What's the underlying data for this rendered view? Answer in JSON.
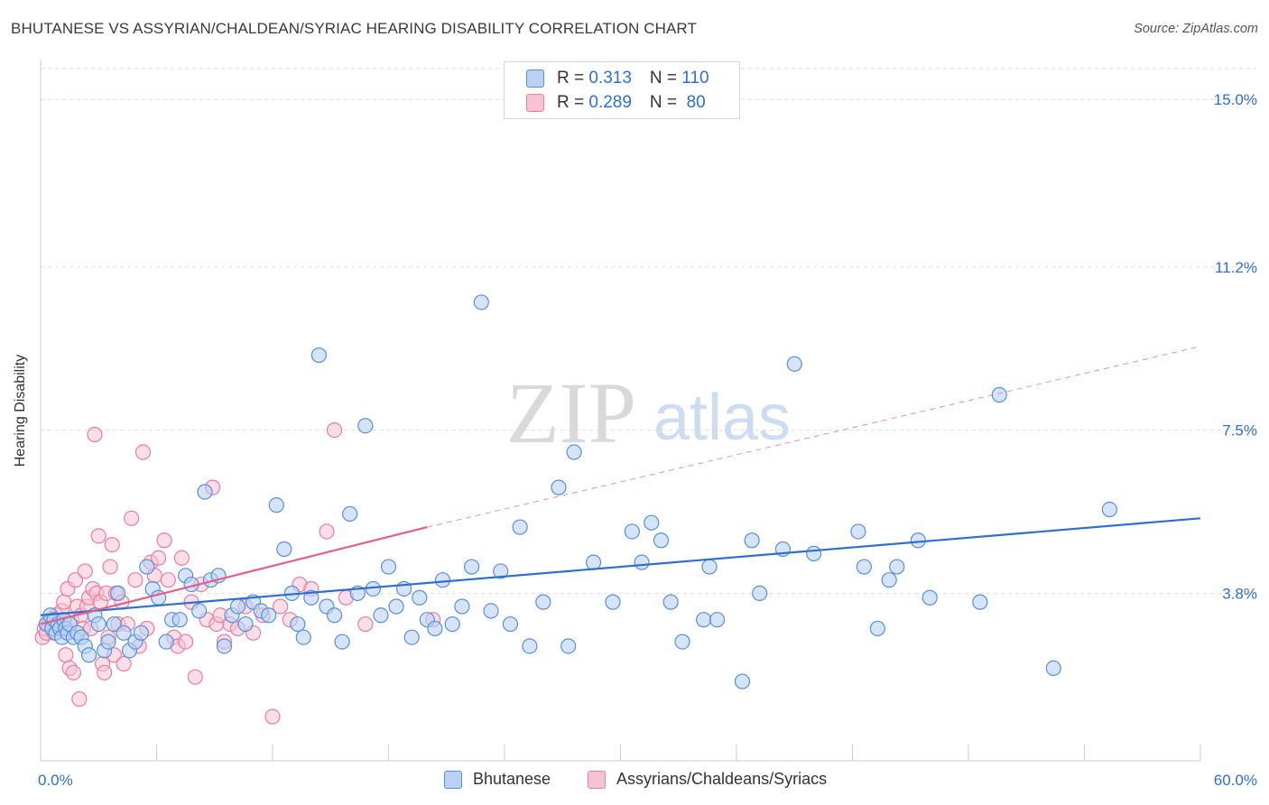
{
  "title": "BHUTANESE VS ASSYRIAN/CHALDEAN/SYRIAC HEARING DISABILITY CORRELATION CHART",
  "source": "Source: ZipAtlas.com",
  "watermark": {
    "zip": "ZIP",
    "atlas": "atlas"
  },
  "legend": {
    "rows": [
      {
        "r_label": "R = ",
        "r_value": "0.313",
        "n_label": "N = ",
        "n_value": "110"
      },
      {
        "r_label": "R = ",
        "r_value": "0.289",
        "n_label": "N = ",
        "n_value": " 80"
      }
    ]
  },
  "colors": {
    "bhutanese_stroke": "#5a8fd8",
    "bhutanese_fill": "#b9d2f4",
    "bhutanese_line": "#2d6fd0",
    "assyrian_stroke": "#e97ea0",
    "assyrian_fill": "#f7c3d3",
    "assyrian_line": "#e0608a",
    "tick_label": "#2f6fd0",
    "grid": "#dddddd"
  },
  "chart_data": {
    "type": "scatter",
    "title": "BHUTANESE VS ASSYRIAN/CHALDEAN/SYRIAC HEARING DISABILITY CORRELATION CHART",
    "xlabel": "",
    "ylabel": "Hearing Disability",
    "xlim": [
      0,
      60
    ],
    "ylim": [
      0,
      15.7
    ],
    "x_tick_labels": [
      "0.0%",
      "60.0%"
    ],
    "y_ticks": [
      3.8,
      7.5,
      11.2,
      15.0
    ],
    "y_tick_labels": [
      "3.8%",
      "7.5%",
      "11.2%",
      "15.0%"
    ],
    "grid": true,
    "legend_position": "top-center",
    "series": [
      {
        "name": "Bhutanese",
        "R": 0.313,
        "N": 110,
        "trend": {
          "x0": 0,
          "y0": 3.3,
          "x1": 60,
          "y1": 5.5
        },
        "points": [
          [
            0.3,
            3.1
          ],
          [
            0.5,
            3.3
          ],
          [
            0.6,
            3.0
          ],
          [
            0.7,
            3.2
          ],
          [
            0.8,
            2.9
          ],
          [
            0.9,
            3.1
          ],
          [
            1.0,
            3.0
          ],
          [
            1.1,
            2.8
          ],
          [
            1.2,
            3.2
          ],
          [
            1.3,
            3.0
          ],
          [
            1.4,
            2.9
          ],
          [
            1.5,
            3.1
          ],
          [
            1.7,
            2.8
          ],
          [
            1.9,
            2.9
          ],
          [
            2.1,
            2.8
          ],
          [
            2.3,
            2.6
          ],
          [
            2.5,
            2.4
          ],
          [
            2.8,
            3.3
          ],
          [
            3.0,
            3.1
          ],
          [
            3.3,
            2.5
          ],
          [
            3.5,
            2.7
          ],
          [
            3.8,
            3.1
          ],
          [
            4.0,
            3.8
          ],
          [
            4.3,
            2.9
          ],
          [
            4.6,
            2.5
          ],
          [
            4.9,
            2.7
          ],
          [
            5.2,
            2.9
          ],
          [
            5.5,
            4.4
          ],
          [
            5.8,
            3.9
          ],
          [
            6.1,
            3.7
          ],
          [
            6.5,
            2.7
          ],
          [
            6.8,
            3.2
          ],
          [
            7.2,
            3.2
          ],
          [
            7.5,
            4.2
          ],
          [
            7.8,
            4.0
          ],
          [
            8.2,
            3.4
          ],
          [
            8.5,
            6.1
          ],
          [
            8.8,
            4.1
          ],
          [
            9.2,
            4.2
          ],
          [
            9.5,
            2.6
          ],
          [
            9.9,
            3.3
          ],
          [
            10.2,
            3.5
          ],
          [
            10.6,
            3.1
          ],
          [
            11.0,
            3.6
          ],
          [
            11.4,
            3.4
          ],
          [
            11.8,
            3.3
          ],
          [
            12.2,
            5.8
          ],
          [
            12.6,
            4.8
          ],
          [
            13.0,
            3.8
          ],
          [
            13.3,
            3.1
          ],
          [
            13.6,
            2.8
          ],
          [
            14.0,
            3.7
          ],
          [
            14.4,
            9.2
          ],
          [
            14.8,
            3.5
          ],
          [
            15.2,
            3.3
          ],
          [
            15.6,
            2.7
          ],
          [
            16.0,
            5.6
          ],
          [
            16.4,
            3.8
          ],
          [
            16.8,
            7.6
          ],
          [
            17.2,
            3.9
          ],
          [
            17.6,
            3.3
          ],
          [
            18.0,
            4.4
          ],
          [
            18.4,
            3.5
          ],
          [
            18.8,
            3.9
          ],
          [
            19.2,
            2.8
          ],
          [
            19.6,
            3.7
          ],
          [
            20.0,
            3.2
          ],
          [
            20.4,
            3.0
          ],
          [
            20.8,
            4.1
          ],
          [
            21.3,
            3.1
          ],
          [
            21.8,
            3.5
          ],
          [
            22.3,
            4.4
          ],
          [
            22.8,
            10.4
          ],
          [
            23.3,
            3.4
          ],
          [
            23.8,
            4.3
          ],
          [
            24.3,
            3.1
          ],
          [
            24.8,
            5.3
          ],
          [
            25.3,
            2.6
          ],
          [
            26.0,
            3.6
          ],
          [
            26.8,
            6.2
          ],
          [
            27.3,
            2.6
          ],
          [
            27.6,
            7.0
          ],
          [
            28.6,
            4.5
          ],
          [
            29.6,
            3.6
          ],
          [
            30.6,
            5.2
          ],
          [
            31.1,
            4.5
          ],
          [
            31.6,
            5.4
          ],
          [
            32.1,
            5.0
          ],
          [
            32.6,
            3.6
          ],
          [
            33.2,
            2.7
          ],
          [
            34.3,
            3.2
          ],
          [
            34.6,
            4.4
          ],
          [
            35.0,
            3.2
          ],
          [
            36.3,
            1.8
          ],
          [
            36.8,
            5.0
          ],
          [
            37.2,
            3.8
          ],
          [
            38.4,
            4.8
          ],
          [
            39.0,
            9.0
          ],
          [
            40.0,
            4.7
          ],
          [
            42.3,
            5.2
          ],
          [
            42.6,
            4.4
          ],
          [
            43.3,
            3.0
          ],
          [
            43.9,
            4.1
          ],
          [
            44.3,
            4.4
          ],
          [
            45.4,
            5.0
          ],
          [
            46.0,
            3.7
          ],
          [
            48.6,
            3.6
          ],
          [
            49.6,
            8.3
          ],
          [
            52.4,
            2.1
          ],
          [
            55.3,
            5.7
          ]
        ]
      },
      {
        "name": "Assyrians/Chaldeans/Syriacs",
        "R": 0.289,
        "N": 80,
        "trend": {
          "x0": 0,
          "y0": 3.1,
          "x1": 20,
          "y1": 5.3
        },
        "trend_extension": {
          "x0": 20,
          "y0": 5.3,
          "x1": 60,
          "y1": 9.4
        },
        "points": [
          [
            0.1,
            2.8
          ],
          [
            0.2,
            3.0
          ],
          [
            0.3,
            2.9
          ],
          [
            0.4,
            3.1
          ],
          [
            0.5,
            3.2
          ],
          [
            0.6,
            3.0
          ],
          [
            0.7,
            2.9
          ],
          [
            0.8,
            3.3
          ],
          [
            0.9,
            3.1
          ],
          [
            1.0,
            3.0
          ],
          [
            1.1,
            3.4
          ],
          [
            1.2,
            3.6
          ],
          [
            1.3,
            2.4
          ],
          [
            1.4,
            3.9
          ],
          [
            1.5,
            2.1
          ],
          [
            1.6,
            3.2
          ],
          [
            1.7,
            2.0
          ],
          [
            1.8,
            4.1
          ],
          [
            1.9,
            3.5
          ],
          [
            2.0,
            1.4
          ],
          [
            2.1,
            3.3
          ],
          [
            2.2,
            3.0
          ],
          [
            2.3,
            4.3
          ],
          [
            2.4,
            3.5
          ],
          [
            2.5,
            3.7
          ],
          [
            2.6,
            3.0
          ],
          [
            2.7,
            3.9
          ],
          [
            2.8,
            7.4
          ],
          [
            2.9,
            3.8
          ],
          [
            3.0,
            5.1
          ],
          [
            3.1,
            3.6
          ],
          [
            3.2,
            2.2
          ],
          [
            3.3,
            2.0
          ],
          [
            3.4,
            3.8
          ],
          [
            3.5,
            2.8
          ],
          [
            3.6,
            4.4
          ],
          [
            3.7,
            4.9
          ],
          [
            3.8,
            2.4
          ],
          [
            3.9,
            3.8
          ],
          [
            4.0,
            3.1
          ],
          [
            4.2,
            3.6
          ],
          [
            4.3,
            2.2
          ],
          [
            4.5,
            3.1
          ],
          [
            4.7,
            5.5
          ],
          [
            4.9,
            4.1
          ],
          [
            5.1,
            2.6
          ],
          [
            5.3,
            7.0
          ],
          [
            5.5,
            3.0
          ],
          [
            5.7,
            4.5
          ],
          [
            5.9,
            4.2
          ],
          [
            6.1,
            4.6
          ],
          [
            6.4,
            5.0
          ],
          [
            6.6,
            4.1
          ],
          [
            6.9,
            2.8
          ],
          [
            7.1,
            2.6
          ],
          [
            7.3,
            4.6
          ],
          [
            7.5,
            2.7
          ],
          [
            7.8,
            3.6
          ],
          [
            8.0,
            1.9
          ],
          [
            8.3,
            4.0
          ],
          [
            8.6,
            3.2
          ],
          [
            8.9,
            6.2
          ],
          [
            9.1,
            3.1
          ],
          [
            9.3,
            3.3
          ],
          [
            9.5,
            2.7
          ],
          [
            9.8,
            3.1
          ],
          [
            10.2,
            3.0
          ],
          [
            10.6,
            3.5
          ],
          [
            11.0,
            2.9
          ],
          [
            11.5,
            3.3
          ],
          [
            12.0,
            1.0
          ],
          [
            12.4,
            3.5
          ],
          [
            12.9,
            3.2
          ],
          [
            13.4,
            4.0
          ],
          [
            14.0,
            3.9
          ],
          [
            14.8,
            5.2
          ],
          [
            15.2,
            7.5
          ],
          [
            15.8,
            3.7
          ],
          [
            16.8,
            3.1
          ],
          [
            20.3,
            3.2
          ]
        ]
      }
    ]
  },
  "bottom_legend": [
    "Bhutanese",
    "Assyrians/Chaldeans/Syriacs"
  ]
}
